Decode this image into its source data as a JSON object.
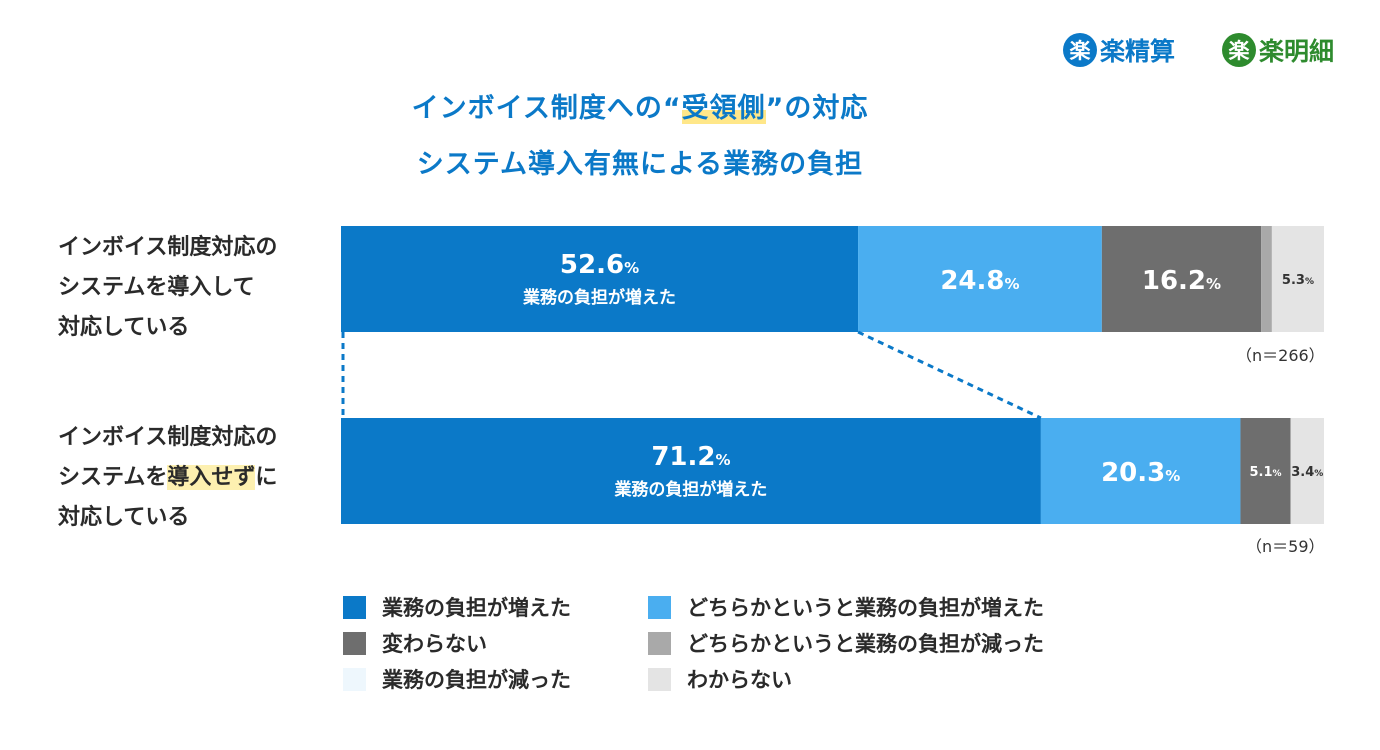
{
  "logos": [
    {
      "badge": "楽",
      "text": "楽精算"
    },
    {
      "badge": "楽",
      "text": "楽明細"
    }
  ],
  "title": {
    "line1_pre": "インボイス制度への“",
    "line1_highlight": "受領側",
    "line1_post": "”の対応",
    "line2": "システム導入有無による業務の負担"
  },
  "rows": [
    {
      "label_lines": [
        "インボイス制度対応の",
        "システムを導入して",
        "対応している"
      ],
      "label_highlight": "",
      "n": "（n＝266）"
    },
    {
      "label_lines": [
        "インボイス制度対応の",
        "システムを",
        "導入せず",
        "に",
        "対応している"
      ],
      "label_highlight": "導入せず",
      "n": "（n＝59）"
    }
  ],
  "colors": {
    "increased": "#0b79c8",
    "somewhat_increased": "#4aaef0",
    "unchanged": "#6e6e6e",
    "somewhat_decreased": "#a9a9a9",
    "decreased": "#eef7fd",
    "unknown": "#e4e4e4",
    "title": "#0b79c8"
  },
  "chart_data": {
    "type": "bar",
    "orientation": "horizontal",
    "stacked": "100%",
    "categories": [
      "インボイス制度対応のシステムを導入して対応している",
      "インボイス制度対応のシステムを導入せずに対応している"
    ],
    "series": [
      {
        "name": "業務の負担が増えた",
        "values": [
          52.6,
          71.2
        ]
      },
      {
        "name": "どちらかというと業務の負担が増えた",
        "values": [
          24.8,
          20.3
        ]
      },
      {
        "name": "変わらない",
        "values": [
          16.2,
          5.1
        ]
      },
      {
        "name": "どちらかというと業務の負担が減った",
        "values": [
          1.1,
          0
        ]
      },
      {
        "name": "業務の負担が減った",
        "values": [
          0,
          0
        ]
      },
      {
        "name": "わからない",
        "values": [
          5.3,
          3.4
        ]
      }
    ],
    "data_labels": [
      [
        "52.6",
        "24.8",
        "16.2",
        "",
        "",
        "5.3"
      ],
      [
        "71.2",
        "20.3",
        "5.1",
        "",
        "",
        "3.4"
      ]
    ],
    "first_segment_sublabel": "業務の負担が増えた",
    "unit": "%",
    "legend_position": "bottom"
  }
}
